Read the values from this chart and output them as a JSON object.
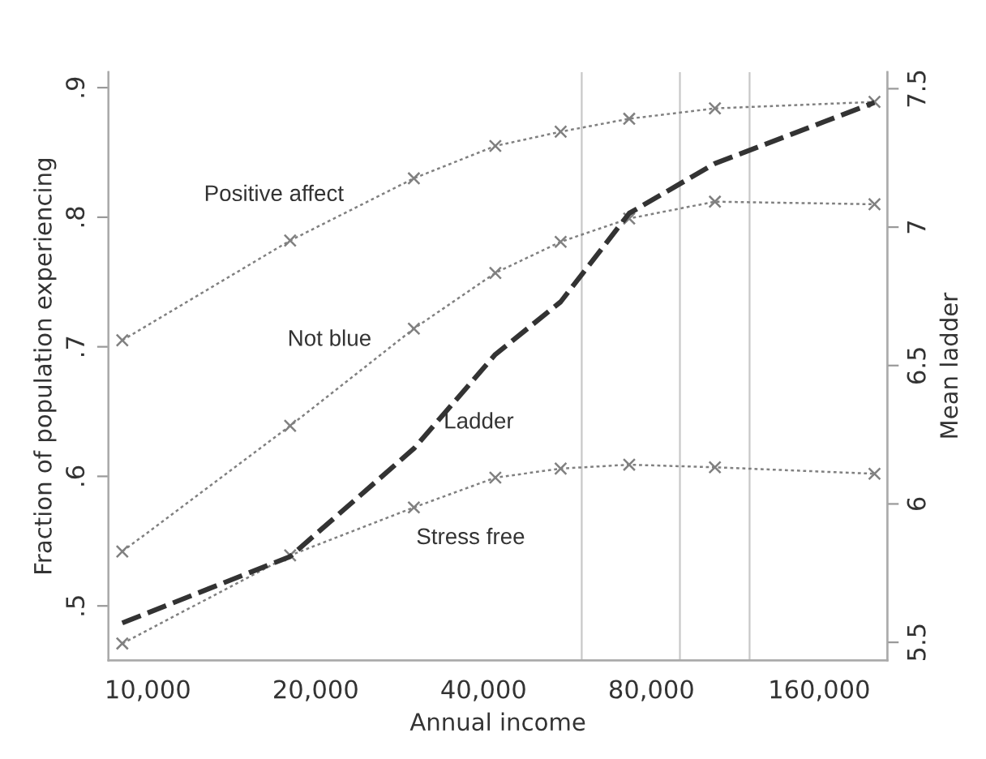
{
  "chart_data": {
    "type": "line",
    "xlabel": "Annual income",
    "ylabel": "Fraction of population experiencing",
    "y2label": "Mean ladder",
    "x": [
      9000,
      18000,
      30000,
      42000,
      55000,
      73000,
      104000,
      201000
    ],
    "log": "x",
    "xlim": [
      8500,
      212000
    ],
    "xticks": [
      {
        "value": 10000,
        "label": "10,000"
      },
      {
        "value": 20000,
        "label": "20,000"
      },
      {
        "value": 40000,
        "label": "40,000"
      },
      {
        "value": 80000,
        "label": "80,000"
      },
      {
        "value": 160000,
        "label": "160,000"
      }
    ],
    "ylim": [
      0.458,
      0.912
    ],
    "yticks": [
      {
        "value": 0.5,
        "label": ".5"
      },
      {
        "value": 0.6,
        "label": ".6"
      },
      {
        "value": 0.7,
        "label": ".7"
      },
      {
        "value": 0.8,
        "label": ".8"
      },
      {
        "value": 0.9,
        "label": ".9"
      }
    ],
    "y2lim": [
      5.435,
      7.56
    ],
    "y2ticks": [
      5.5,
      6,
      6.5,
      7,
      7.5
    ],
    "grid": false,
    "legend": false,
    "series": [
      {
        "name": "Positive affect",
        "color": "#808080",
        "marker": "cross",
        "line_style": "dotted",
        "values": [
          0.705,
          0.782,
          0.83,
          0.855,
          0.866,
          0.876,
          0.884,
          0.889
        ]
      },
      {
        "name": "Not blue",
        "color": "#808080",
        "marker": "cross",
        "line_style": "dotted",
        "values": [
          0.542,
          0.639,
          0.714,
          0.757,
          0.781,
          0.799,
          0.812,
          0.81
        ]
      },
      {
        "name": "Stress free",
        "color": "#808080",
        "marker": "cross",
        "line_style": "dotted",
        "values": [
          0.471,
          0.539,
          0.576,
          0.599,
          0.606,
          0.609,
          0.607,
          0.602
        ]
      },
      {
        "name": "Ladder",
        "color": "#333333",
        "marker": "none",
        "line_style": "dashed",
        "axis": "y2",
        "values": [
          5.57,
          5.81,
          6.2,
          6.54,
          6.73,
          7.05,
          7.23,
          7.45
        ]
      }
    ],
    "ref_lines": [
      {
        "axis": "x",
        "value": 60000,
        "color": "#c8c8c8"
      },
      {
        "axis": "x",
        "value": 90000,
        "color": "#c8c8c8"
      },
      {
        "axis": "x",
        "value": 120000,
        "color": "#c8c8c8"
      }
    ]
  }
}
